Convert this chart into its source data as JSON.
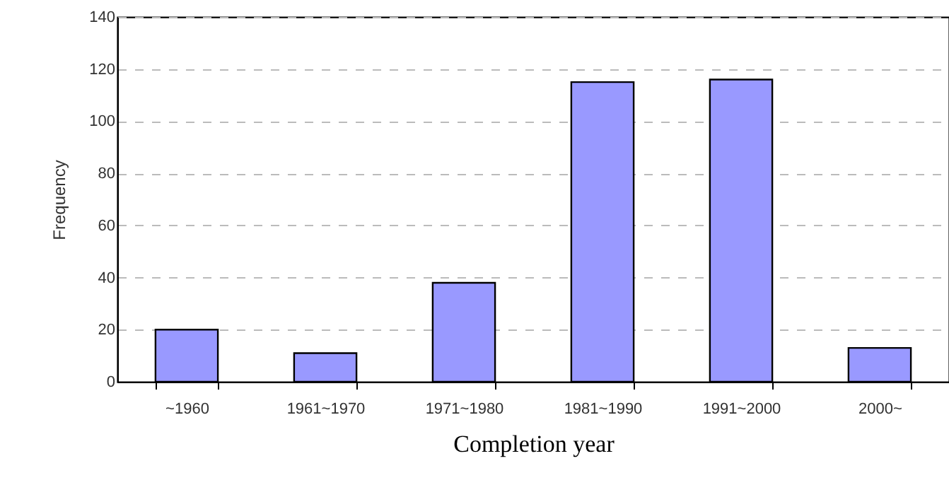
{
  "chart_data": {
    "type": "bar",
    "xlabel": "Completion year",
    "ylabel": "Frequency",
    "categories": [
      "~1960",
      "1961~1970",
      "1971~1980",
      "1981~1990",
      "1991~2000",
      "2000~"
    ],
    "values": [
      20,
      11,
      38,
      115,
      116,
      13
    ],
    "color": "#9999ff",
    "ylim": [
      0,
      140
    ],
    "yticks": [
      0,
      20,
      40,
      60,
      80,
      100,
      120,
      140
    ],
    "grid": "y"
  }
}
